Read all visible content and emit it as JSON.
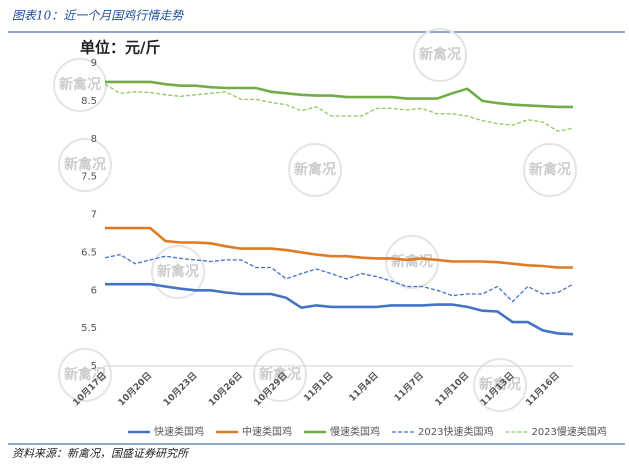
{
  "header": "图表10：近一个月国鸡行情走势",
  "source": "资料来源：新禽况，国盛证券研究所",
  "watermark": "新禽况",
  "chart_data": {
    "type": "line",
    "unit_label": "单位：元/斤",
    "categories": [
      "10月17日",
      null,
      null,
      "10月20日",
      null,
      null,
      "10月23日",
      null,
      null,
      "10月26日",
      null,
      null,
      "10月29日",
      null,
      null,
      "11月1日",
      null,
      null,
      "11月4日",
      null,
      null,
      "11月7日",
      null,
      null,
      "11月10日",
      null,
      null,
      "11月13日",
      null,
      null,
      "11月16日",
      null
    ],
    "ylim": [
      5,
      9
    ],
    "yticks": [
      5,
      5.5,
      6,
      6.5,
      7,
      7.5,
      8,
      8.5,
      9
    ],
    "grid": false,
    "series": [
      {
        "name": "快速类国鸡",
        "color": "#4472c4",
        "style": "solid",
        "values": [
          6.08,
          6.08,
          6.08,
          6.08,
          6.05,
          6.02,
          6.0,
          6.0,
          5.97,
          5.95,
          5.95,
          5.95,
          5.9,
          5.77,
          5.8,
          5.78,
          5.78,
          5.78,
          5.78,
          5.8,
          5.8,
          5.8,
          5.81,
          5.81,
          5.78,
          5.73,
          5.72,
          5.58,
          5.58,
          5.47,
          5.43,
          5.42
        ]
      },
      {
        "name": "中速类国鸡",
        "color": "#e07b24",
        "style": "solid",
        "values": [
          6.82,
          6.82,
          6.82,
          6.82,
          6.65,
          6.63,
          6.63,
          6.62,
          6.58,
          6.55,
          6.55,
          6.55,
          6.53,
          6.5,
          6.47,
          6.45,
          6.45,
          6.43,
          6.42,
          6.42,
          6.4,
          6.42,
          6.4,
          6.38,
          6.38,
          6.38,
          6.37,
          6.35,
          6.33,
          6.32,
          6.3,
          6.3
        ]
      },
      {
        "name": "慢速类国鸡",
        "color": "#70ad47",
        "style": "solid",
        "values": [
          8.75,
          8.75,
          8.75,
          8.75,
          8.72,
          8.7,
          8.7,
          8.68,
          8.67,
          8.67,
          8.67,
          8.62,
          8.6,
          8.58,
          8.57,
          8.57,
          8.55,
          8.55,
          8.55,
          8.55,
          8.53,
          8.53,
          8.53,
          8.6,
          8.66,
          8.5,
          8.47,
          8.45,
          8.44,
          8.43,
          8.42,
          8.42
        ]
      },
      {
        "name": "2023快速类国鸡",
        "color": "#4472c4",
        "style": "dashed",
        "values": [
          6.43,
          6.47,
          6.35,
          6.4,
          6.45,
          6.42,
          6.4,
          6.38,
          6.4,
          6.4,
          6.3,
          6.3,
          6.15,
          6.22,
          6.28,
          6.22,
          6.15,
          6.22,
          6.18,
          6.12,
          6.05,
          6.05,
          6.0,
          5.93,
          5.95,
          5.95,
          6.05,
          5.85,
          6.05,
          5.95,
          5.97,
          6.08
        ]
      },
      {
        "name": "2023慢速类国鸡",
        "color": "#8fc95f",
        "style": "dashed",
        "values": [
          8.72,
          8.6,
          8.62,
          8.61,
          8.58,
          8.56,
          8.58,
          8.6,
          8.62,
          8.52,
          8.52,
          8.48,
          8.45,
          8.37,
          8.42,
          8.3,
          8.3,
          8.3,
          8.4,
          8.4,
          8.38,
          8.4,
          8.33,
          8.33,
          8.3,
          8.24,
          8.2,
          8.18,
          8.25,
          8.22,
          8.1,
          8.14
        ]
      }
    ]
  }
}
